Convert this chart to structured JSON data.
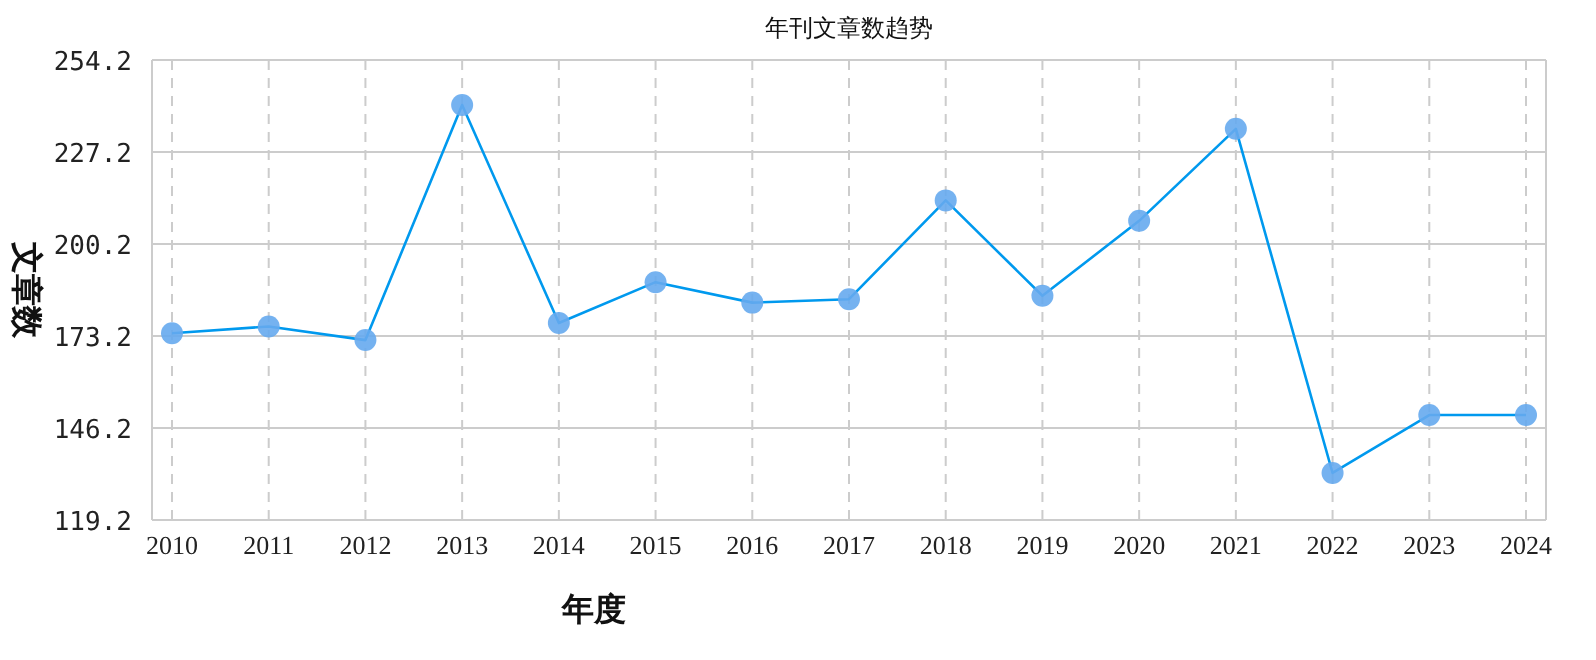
{
  "chart_data": {
    "type": "line",
    "title": "年刊文章数趋势",
    "xlabel": "年度",
    "ylabel": "文章数",
    "categories": [
      "2010",
      "2011",
      "2012",
      "2013",
      "2014",
      "2015",
      "2016",
      "2017",
      "2018",
      "2019",
      "2020",
      "2021",
      "2022",
      "2023",
      "2024"
    ],
    "series": [
      {
        "color": "#0099ee",
        "values": [
          174,
          176,
          172,
          241,
          177,
          189,
          183,
          184,
          213,
          185,
          207,
          234,
          133,
          150,
          150
        ]
      }
    ],
    "ylim": [
      119.2,
      254.2
    ],
    "yticks": [
      119.2,
      146.2,
      173.2,
      200.2,
      227.2,
      254.2
    ],
    "grid": true,
    "marker": "circle"
  }
}
